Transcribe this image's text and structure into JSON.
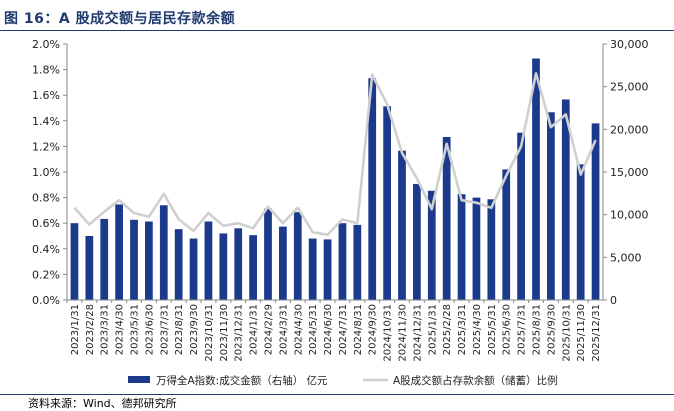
{
  "figure": {
    "title": "图 16：A 股成交额与居民存款余额",
    "source": "资料来源：Wind、德邦研究所"
  },
  "chart_data": {
    "type": "bar",
    "categories": [
      "2023/1/31",
      "2023/2/28",
      "2023/3/31",
      "2023/4/30",
      "2023/5/31",
      "2023/6/30",
      "2023/7/31",
      "2023/8/31",
      "2023/9/30",
      "2023/10/31",
      "2023/11/30",
      "2023/12/31",
      "2024/1/31",
      "2024/2/29",
      "2024/3/31",
      "2024/4/30",
      "2024/5/31",
      "2024/6/30",
      "2024/7/31",
      "2024/8/31",
      "2024/9/30",
      "2024/10/31",
      "2024/11/30",
      "2024/12/31",
      "2025/1/31",
      "2025/2/28",
      "2025/3/31",
      "2025/4/30",
      "2025/5/31",
      "2025/6/30",
      "2025/7/31",
      "2025/8/31",
      "2025/9/30",
      "2025/10/31",
      "2025/11/30",
      "2025/12/31"
    ],
    "series": [
      {
        "name": "万得全A指数:成交金额（右轴） 亿元",
        "type": "bar",
        "axis": "right",
        "color": "#1c3a8c",
        "values": [
          9000,
          7500,
          9500,
          11200,
          9400,
          9200,
          11100,
          8300,
          7200,
          9200,
          7800,
          8400,
          7600,
          10700,
          8600,
          10300,
          7200,
          7100,
          9000,
          8800,
          26000,
          22700,
          17500,
          13600,
          12800,
          19100,
          12400,
          12000,
          11800,
          15300,
          19600,
          28300,
          22000,
          23500,
          15900,
          20700
        ]
      },
      {
        "name": "A股成交额占存款余额（储蓄）比例",
        "type": "line",
        "axis": "left",
        "color": "#d0d0d0",
        "values": [
          0.72,
          0.59,
          0.69,
          0.78,
          0.68,
          0.65,
          0.83,
          0.63,
          0.54,
          0.68,
          0.58,
          0.6,
          0.56,
          0.73,
          0.6,
          0.72,
          0.53,
          0.51,
          0.63,
          0.6,
          1.76,
          1.53,
          1.15,
          0.95,
          0.71,
          1.22,
          0.78,
          0.76,
          0.72,
          0.97,
          1.2,
          1.77,
          1.35,
          1.45,
          0.98,
          1.25
        ]
      }
    ],
    "y_left": {
      "min": 0,
      "max": 2.0,
      "ticks": [
        "0.0%",
        "0.2%",
        "0.4%",
        "0.6%",
        "0.8%",
        "1.0%",
        "1.2%",
        "1.4%",
        "1.6%",
        "1.8%",
        "2.0%"
      ]
    },
    "y_right": {
      "min": 0,
      "max": 30000,
      "ticks": [
        "0",
        "5,000",
        "10,000",
        "15,000",
        "20,000",
        "25,000",
        "30,000"
      ]
    },
    "grid": false,
    "legend_position": "bottom"
  }
}
